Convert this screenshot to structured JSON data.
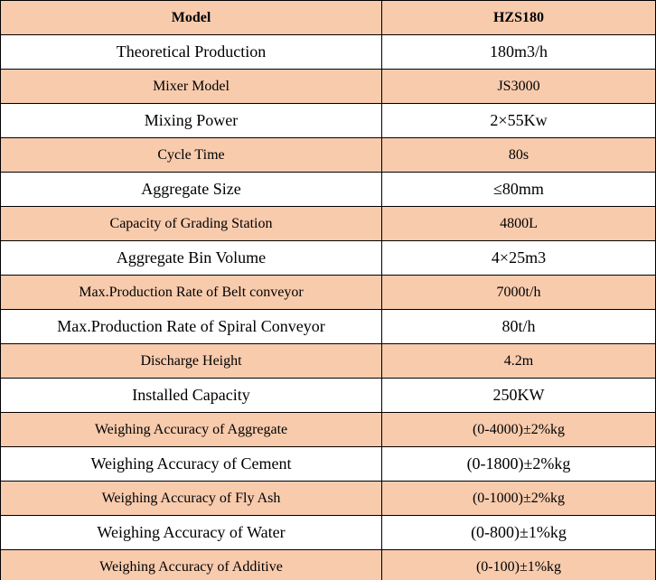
{
  "table": {
    "header": [
      "Model",
      "HZS180"
    ],
    "rows": [
      [
        "Theoretical Production",
        "180m3/h"
      ],
      [
        "Mixer Model",
        "JS3000"
      ],
      [
        "Mixing Power",
        "2×55Kw"
      ],
      [
        "Cycle Time",
        "80s"
      ],
      [
        "Aggregate Size",
        "≤80mm"
      ],
      [
        "Capacity of Grading Station",
        "4800L"
      ],
      [
        "Aggregate Bin Volume",
        "4×25m3"
      ],
      [
        "Max.Production Rate of Belt conveyor",
        "7000t/h"
      ],
      [
        "Max.Production Rate of Spiral Conveyor",
        "80t/h"
      ],
      [
        "Discharge Height",
        "4.2m"
      ],
      [
        "Installed Capacity",
        "250KW"
      ],
      [
        "Weighing Accuracy of Aggregate",
        "(0-4000)±2%kg"
      ],
      [
        "Weighing Accuracy of Cement",
        "(0-1800)±2%kg"
      ],
      [
        "Weighing Accuracy of Fly Ash",
        "(0-1000)±2%kg"
      ],
      [
        "Weighing Accuracy of Water",
        "(0-800)±1%kg"
      ],
      [
        "Weighing Accuracy of Additive",
        "(0-100)±1%kg"
      ]
    ]
  }
}
